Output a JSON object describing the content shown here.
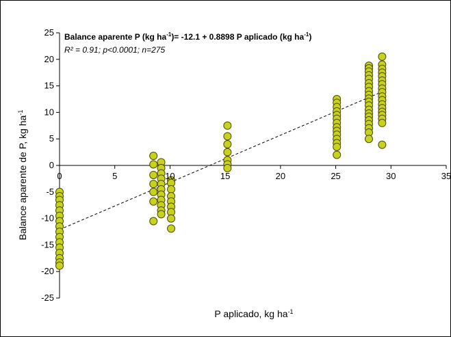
{
  "chart_data": {
    "type": "scatter",
    "title": "",
    "xlabel": {
      "main": "P aplicado, kg ha",
      "sup": "-1"
    },
    "ylabel": {
      "main": "Balance aparente de P, kg ha",
      "sup": "-1"
    },
    "xlim": [
      0,
      35
    ],
    "ylim": [
      -25,
      25
    ],
    "xticks": [
      0,
      5,
      10,
      15,
      20,
      25,
      30,
      35
    ],
    "yticks": [
      -25,
      -20,
      -15,
      -10,
      -5,
      0,
      5,
      10,
      15,
      20,
      25
    ],
    "grid": false,
    "marker_color": "#c8d21e",
    "marker_edge": "#4a4a00",
    "annotation": {
      "equation_parts": [
        "Balance aparente P (kg ha",
        "-1",
        ")= -12.1 + 0.8898 P aplicado (kg ha",
        "-1",
        ")"
      ],
      "stats": "R² = 0.91; p<0.0001; n=275"
    },
    "fit_line": {
      "intercept": -12.1,
      "slope": 0.8898,
      "x_range": [
        0,
        29
      ],
      "style": "dashed"
    },
    "series": [
      {
        "x": 0,
        "y": [
          -5.0,
          -5.8,
          -6.5,
          -7.5,
          -8.5,
          -9.5,
          -10.5,
          -11.5,
          -12.5,
          -13.5,
          -14.5,
          -15.5,
          -16.5,
          -17.5,
          -18.3,
          -18.9
        ]
      },
      {
        "x": 8.5,
        "y": [
          1.8,
          0.2,
          -1.8,
          -3.5,
          -5.0,
          -6.8,
          -10.5
        ]
      },
      {
        "x": 9.2,
        "y": [
          0.6,
          -0.5,
          -1.5,
          -2.5,
          -3.5,
          -4.5,
          -5.5,
          -6.5,
          -7.5,
          -8.5,
          -9.2
        ]
      },
      {
        "x": 10.1,
        "y": [
          -2.8,
          -3.3,
          -4.5,
          -5.8,
          -6.8,
          -7.8,
          -8.8,
          -10.0,
          -11.9
        ]
      },
      {
        "x": 15.2,
        "y": [
          7.5,
          5.5,
          4.0,
          2.5,
          1.0,
          0.2,
          -0.5
        ]
      },
      {
        "x": 25.1,
        "y": [
          12.5,
          11.8,
          11.0,
          10.2,
          9.5,
          8.8,
          8.0,
          7.2,
          6.5,
          5.8,
          5.0,
          4.2,
          3.5,
          2.0
        ]
      },
      {
        "x": 28.0,
        "y": [
          18.8,
          18.3,
          17.7,
          17.0,
          16.3,
          15.5,
          14.8,
          14.0,
          13.3,
          12.6,
          12.0,
          11.3,
          10.5,
          9.8,
          9.2,
          8.5,
          7.8,
          7.0,
          6.2,
          5.0
        ]
      },
      {
        "x": 29.2,
        "y": [
          20.5,
          19.0,
          18.2,
          17.5,
          16.8,
          16.0,
          15.3,
          14.5,
          13.8,
          13.0,
          12.3,
          11.5,
          10.8,
          10.1,
          9.5,
          8.8,
          8.0,
          3.9
        ]
      }
    ]
  }
}
